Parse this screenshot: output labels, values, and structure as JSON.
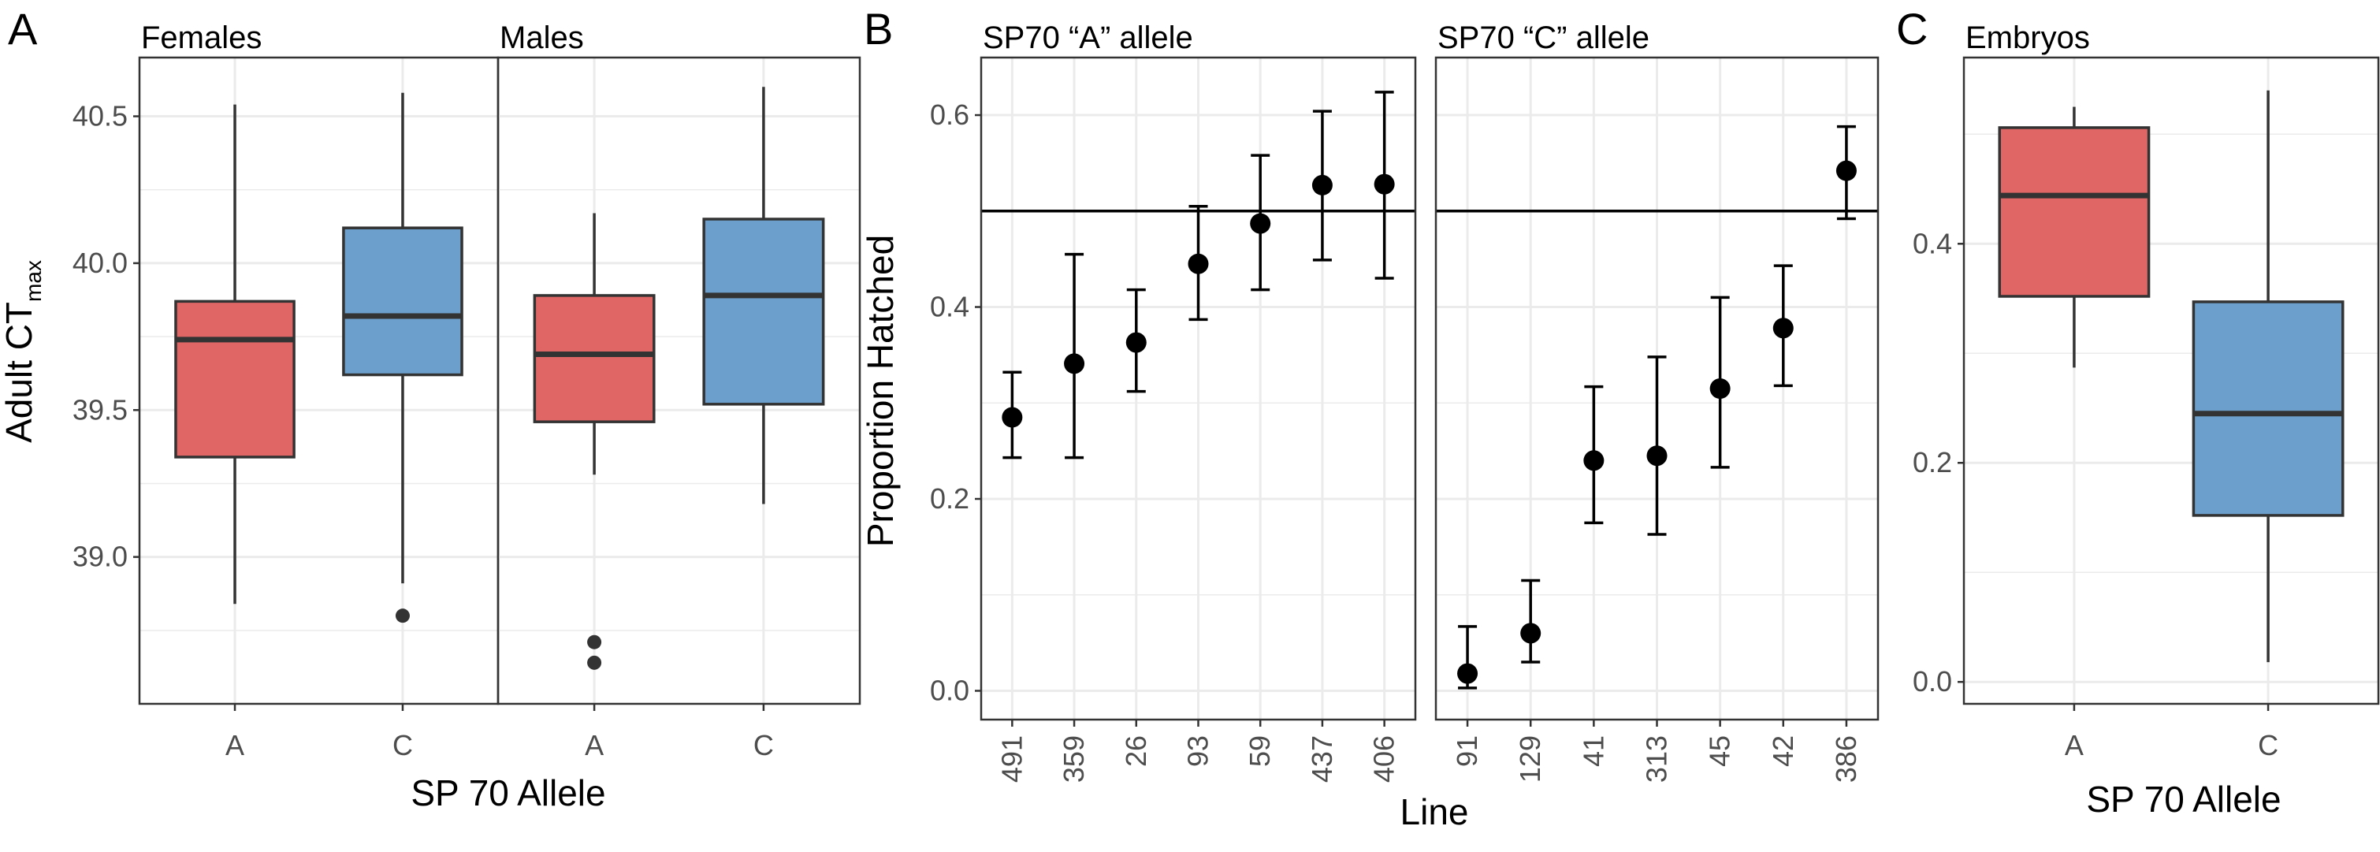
{
  "colors": {
    "allele_A": "#E06666",
    "allele_C": "#6C9FCB",
    "box_stroke": "#333333",
    "point": "#000000",
    "grid": "#EBEBEB"
  },
  "panels": {
    "A": {
      "tag": "A",
      "ylabel_main": "Adult  CT",
      "ylabel_sub": "max",
      "xlabel": "SP 70 Allele"
    },
    "B": {
      "tag": "B",
      "ylabel": "Proportion Hatched",
      "xlabel": "Line"
    },
    "C": {
      "tag": "C",
      "xlabel": "SP 70 Allele"
    }
  },
  "chart_data": [
    {
      "type": "box",
      "panel": "A",
      "ylabel": "Adult CTmax",
      "xlabel": "SP 70 Allele",
      "ylim": [
        38.5,
        40.7
      ],
      "yticks": [
        39.0,
        39.5,
        40.0,
        40.5
      ],
      "facets": [
        {
          "title": "Females",
          "boxes": [
            {
              "category": "A",
              "whisker_low": 38.84,
              "q1": 39.34,
              "median": 39.74,
              "q3": 39.87,
              "whisker_high": 40.54,
              "outliers": []
            },
            {
              "category": "C",
              "whisker_low": 38.91,
              "q1": 39.62,
              "median": 39.82,
              "q3": 40.12,
              "whisker_high": 40.58,
              "outliers": [
                38.8
              ]
            }
          ]
        },
        {
          "title": "Males",
          "boxes": [
            {
              "category": "A",
              "whisker_low": 39.28,
              "q1": 39.46,
              "median": 39.69,
              "q3": 39.89,
              "whisker_high": 40.17,
              "outliers": [
                38.71,
                38.64
              ]
            },
            {
              "category": "C",
              "whisker_low": 39.18,
              "q1": 39.52,
              "median": 39.89,
              "q3": 40.15,
              "whisker_high": 40.6,
              "outliers": []
            }
          ]
        }
      ]
    },
    {
      "type": "scatter",
      "panel": "B",
      "ylabel": "Proportion Hatched",
      "xlabel": "Line",
      "ylim": [
        -0.03,
        0.66
      ],
      "yticks": [
        0.0,
        0.2,
        0.4,
        0.6
      ],
      "reference_line": 0.5,
      "facets": [
        {
          "title": "SP70 “A” allele",
          "points": [
            {
              "line": "491",
              "y": 0.285,
              "lo": 0.243,
              "hi": 0.332
            },
            {
              "line": "359",
              "y": 0.341,
              "lo": 0.243,
              "hi": 0.455
            },
            {
              "line": "26",
              "y": 0.363,
              "lo": 0.312,
              "hi": 0.418
            },
            {
              "line": "93",
              "y": 0.445,
              "lo": 0.387,
              "hi": 0.505
            },
            {
              "line": "59",
              "y": 0.487,
              "lo": 0.418,
              "hi": 0.558
            },
            {
              "line": "437",
              "y": 0.527,
              "lo": 0.449,
              "hi": 0.604
            },
            {
              "line": "406",
              "y": 0.528,
              "lo": 0.43,
              "hi": 0.624
            }
          ]
        },
        {
          "title": "SP70 “C” allele",
          "points": [
            {
              "line": "91",
              "y": 0.018,
              "lo": 0.003,
              "hi": 0.067
            },
            {
              "line": "129",
              "y": 0.06,
              "lo": 0.03,
              "hi": 0.115
            },
            {
              "line": "41",
              "y": 0.24,
              "lo": 0.175,
              "hi": 0.317
            },
            {
              "line": "313",
              "y": 0.245,
              "lo": 0.163,
              "hi": 0.348
            },
            {
              "line": "45",
              "y": 0.315,
              "lo": 0.233,
              "hi": 0.41
            },
            {
              "line": "42",
              "y": 0.378,
              "lo": 0.318,
              "hi": 0.443
            },
            {
              "line": "386",
              "y": 0.542,
              "lo": 0.492,
              "hi": 0.588
            }
          ]
        }
      ]
    },
    {
      "type": "box",
      "panel": "C",
      "xlabel": "SP 70 Allele",
      "ylim": [
        -0.02,
        0.57
      ],
      "yticks": [
        0.0,
        0.2,
        0.4
      ],
      "facets": [
        {
          "title": "Embryos",
          "boxes": [
            {
              "category": "A",
              "whisker_low": 0.287,
              "q1": 0.352,
              "median": 0.444,
              "q3": 0.506,
              "whisker_high": 0.525,
              "outliers": []
            },
            {
              "category": "C",
              "whisker_low": 0.018,
              "q1": 0.152,
              "median": 0.245,
              "q3": 0.347,
              "whisker_high": 0.54,
              "outliers": []
            }
          ]
        }
      ]
    }
  ]
}
